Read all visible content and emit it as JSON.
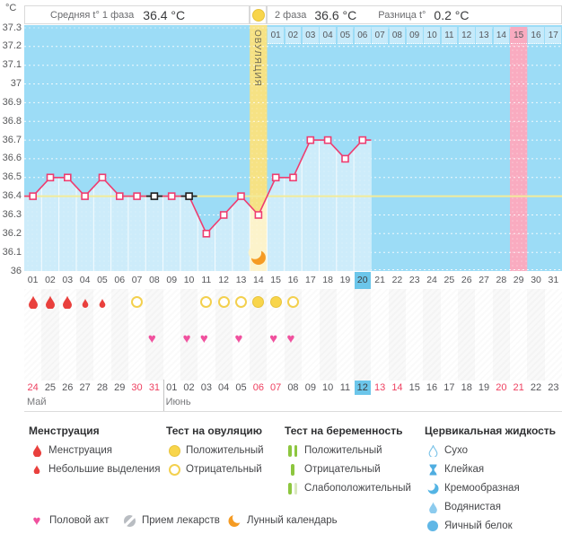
{
  "header": {
    "unit_label": "°C",
    "phase1_label": "Средняя t° 1 фаза",
    "phase1_value": "36.4 °C",
    "phase2_label": "2 фаза",
    "phase2_value": "36.6 °C",
    "diff_label": "Разница t°",
    "diff_value": "0.2 °C"
  },
  "chart_data": {
    "type": "line",
    "title": "Basal body temperature cycle chart",
    "ylabel": "°C",
    "ylim": [
      36,
      37.3
    ],
    "ytick_labels": [
      "37.3",
      "37.2",
      "37.1",
      "37",
      "36.9",
      "36.8",
      "36.7",
      "36.6",
      "36.5",
      "36.4",
      "36.3",
      "36.2",
      "36.1",
      "36"
    ],
    "total_days": 31,
    "coverline_temp": 36.4,
    "temps_by_day": [
      36.4,
      36.5,
      36.5,
      36.4,
      36.5,
      36.4,
      36.4,
      36.4,
      36.4,
      36.4,
      36.2,
      36.3,
      36.4,
      36.3,
      36.5,
      36.5,
      36.7,
      36.7,
      36.6,
      36.7
    ],
    "black_marked_days": [
      8,
      10
    ],
    "ovulation_day": 14,
    "ovulation_label": "ОВУЛЯЦИЯ",
    "expected_period_day": 29,
    "current_cycle_day": 20,
    "dpo_labels": [
      "01",
      "02",
      "03",
      "04",
      "05",
      "06",
      "07",
      "08",
      "09",
      "10",
      "11",
      "12",
      "13",
      "14",
      "15",
      "16",
      "17"
    ],
    "cycle_day_labels": [
      "01",
      "02",
      "03",
      "04",
      "05",
      "06",
      "07",
      "08",
      "09",
      "10",
      "11",
      "12",
      "13",
      "14",
      "15",
      "16",
      "17",
      "18",
      "19",
      "20",
      "21",
      "22",
      "23",
      "24",
      "25",
      "26",
      "27",
      "28",
      "29",
      "30",
      "31"
    ],
    "menstruation_days": [
      {
        "day": 1,
        "size": "large"
      },
      {
        "day": 2,
        "size": "large"
      },
      {
        "day": 3,
        "size": "large"
      },
      {
        "day": 4,
        "size": "small"
      },
      {
        "day": 5,
        "size": "small"
      }
    ],
    "ovulation_tests": [
      {
        "day": 7,
        "result": "negative"
      },
      {
        "day": 11,
        "result": "negative"
      },
      {
        "day": 12,
        "result": "negative"
      },
      {
        "day": 13,
        "result": "negative"
      },
      {
        "day": 14,
        "result": "positive"
      },
      {
        "day": 15,
        "result": "positive"
      },
      {
        "day": 16,
        "result": "negative"
      }
    ],
    "intercourse_days": [
      8,
      10,
      11,
      13,
      15,
      16
    ],
    "calendar_days": [
      {
        "label": "24",
        "weekend": true
      },
      {
        "label": "25",
        "weekend": false
      },
      {
        "label": "26",
        "weekend": false
      },
      {
        "label": "27",
        "weekend": false
      },
      {
        "label": "28",
        "weekend": false
      },
      {
        "label": "29",
        "weekend": false
      },
      {
        "label": "30",
        "weekend": true
      },
      {
        "label": "31",
        "weekend": true
      },
      {
        "label": "01",
        "weekend": false
      },
      {
        "label": "02",
        "weekend": false
      },
      {
        "label": "03",
        "weekend": false
      },
      {
        "label": "04",
        "weekend": false
      },
      {
        "label": "05",
        "weekend": false
      },
      {
        "label": "06",
        "weekend": true
      },
      {
        "label": "07",
        "weekend": true
      },
      {
        "label": "08",
        "weekend": false
      },
      {
        "label": "09",
        "weekend": false
      },
      {
        "label": "10",
        "weekend": false
      },
      {
        "label": "11",
        "weekend": false
      },
      {
        "label": "12",
        "weekend": false
      },
      {
        "label": "13",
        "weekend": true
      },
      {
        "label": "14",
        "weekend": true
      },
      {
        "label": "15",
        "weekend": false
      },
      {
        "label": "16",
        "weekend": false
      },
      {
        "label": "17",
        "weekend": false
      },
      {
        "label": "18",
        "weekend": false
      },
      {
        "label": "19",
        "weekend": false
      },
      {
        "label": "20",
        "weekend": true
      },
      {
        "label": "21",
        "weekend": true
      },
      {
        "label": "22",
        "weekend": false
      },
      {
        "label": "23",
        "weekend": false
      }
    ],
    "months": [
      {
        "name": "Май",
        "start_day": 1
      },
      {
        "name": "Июнь",
        "start_day": 9
      }
    ]
  },
  "legend": {
    "sections": [
      {
        "title": "Менструация",
        "items": [
          {
            "icon": "drop-large",
            "label": "Менструация"
          },
          {
            "icon": "drop-small",
            "label": "Небольшие выделения"
          }
        ]
      },
      {
        "title": "Тест на овуляцию",
        "items": [
          {
            "icon": "circle-filled",
            "label": "Положительный"
          },
          {
            "icon": "circle-outline",
            "label": "Отрицательный"
          }
        ]
      },
      {
        "title": "Тест на беременность",
        "items": [
          {
            "icon": "bars-two",
            "label": "Положительный"
          },
          {
            "icon": "bar-one",
            "label": "Отрицательный"
          },
          {
            "icon": "bars-weak",
            "label": "Слабоположительный"
          }
        ]
      },
      {
        "title": "Цервикальная жидкость",
        "items": [
          {
            "icon": "drop-outline",
            "label": "Сухо"
          },
          {
            "icon": "hourglass",
            "label": "Клейкая"
          },
          {
            "icon": "half-moon",
            "label": "Кремообразная"
          },
          {
            "icon": "drop-filled",
            "label": "Водянистая"
          },
          {
            "icon": "circle-filled-blue",
            "label": "Яичный белок"
          }
        ]
      }
    ],
    "footer_items": [
      {
        "icon": "heart",
        "label": "Половой акт"
      },
      {
        "icon": "pill",
        "label": "Прием лекарств"
      },
      {
        "icon": "moon",
        "label": "Лунный календарь"
      }
    ]
  },
  "colors": {
    "chart_bg": "#9cdcf6",
    "fill": "#cdecfa",
    "dpo_cell": "#c6eafa",
    "line": "#ee3d70",
    "coverline": "#f3eb9a",
    "ovulation_column": "#f6e284",
    "ovulation_column_light": "#fcf3cb",
    "period_column": "#f9abc0",
    "today_bg": "#6cc6ea",
    "weekend_text": "#ee4060",
    "menses_red": "#e9403d",
    "test_yellow": "#f8d54b",
    "test_yellow_border": "#e7c33c",
    "heart_pink": "#f0519e",
    "preg_green": "#8dc63f",
    "preg_green_pale": "#d9e9bd",
    "fluid_blue": "#4fade0",
    "fluid_blue_light": "#8ccbee",
    "moon_orange": "#f59b23",
    "pill_gray": "#b9bdc2",
    "text_gray": "#58595b"
  }
}
